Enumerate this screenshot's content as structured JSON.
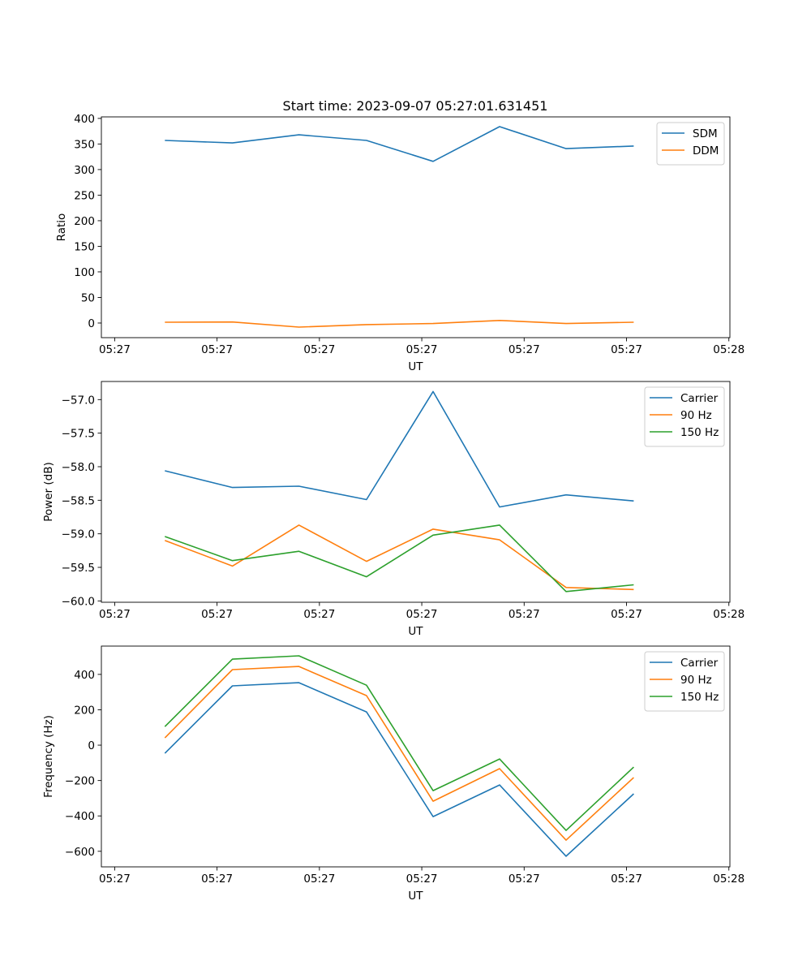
{
  "figure_title": "Start time: 2023-09-07 05:27:01.631451",
  "chart_data": [
    {
      "type": "line",
      "title": "Start time: 2023-09-07 05:27:01.631451",
      "xlabel": "UT",
      "ylabel": "Ratio",
      "x_units": "seconds after 05:27:00",
      "xlim": [
        -1.3,
        60.1
      ],
      "ylim": [
        -28.6,
        403
      ],
      "xticks": {
        "values": [
          0,
          10,
          20,
          30,
          40,
          50,
          60
        ],
        "labels": [
          "05:27",
          "05:27",
          "05:27",
          "05:27",
          "05:27",
          "05:27",
          "05:28"
        ]
      },
      "yticks": {
        "values": [
          0,
          50,
          100,
          150,
          200,
          250,
          300,
          350,
          400
        ],
        "labels": [
          "0",
          "50",
          "100",
          "150",
          "200",
          "250",
          "300",
          "350",
          "400"
        ]
      },
      "x": [
        4.9,
        11.5,
        18.0,
        24.6,
        31.1,
        37.6,
        44.1,
        50.7
      ],
      "legend_position": "top-right",
      "series": [
        {
          "name": "SDM",
          "color": "#1f77b4",
          "values": [
            357,
            352,
            368,
            357,
            316,
            384,
            341,
            346
          ]
        },
        {
          "name": "DDM",
          "color": "#ff7f0e",
          "values": [
            1.6,
            2,
            -8,
            -3,
            -1,
            5,
            -1,
            1.5
          ]
        }
      ]
    },
    {
      "type": "line",
      "title": "",
      "xlabel": "UT",
      "ylabel": "Power (dB)",
      "x_units": "seconds after 05:27:00",
      "xlim": [
        -1.3,
        60.1
      ],
      "ylim": [
        -60.02,
        -56.73
      ],
      "xticks": {
        "values": [
          0,
          10,
          20,
          30,
          40,
          50,
          60
        ],
        "labels": [
          "05:27",
          "05:27",
          "05:27",
          "05:27",
          "05:27",
          "05:27",
          "05:28"
        ]
      },
      "yticks": {
        "values": [
          -60,
          -59.5,
          -59,
          -58.5,
          -58,
          -57.5,
          -57
        ],
        "labels": [
          "−60.0",
          "−59.5",
          "−59.0",
          "−58.5",
          "−58.0",
          "−57.5",
          "−57.0"
        ]
      },
      "x": [
        4.9,
        11.5,
        18.0,
        24.6,
        31.1,
        37.6,
        44.1,
        50.7
      ],
      "legend_position": "top-right",
      "series": [
        {
          "name": "Carrier",
          "color": "#1f77b4",
          "values": [
            -58.06,
            -58.31,
            -58.29,
            -58.49,
            -56.88,
            -58.6,
            -58.42,
            -58.51
          ]
        },
        {
          "name": "90 Hz",
          "color": "#ff7f0e",
          "values": [
            -59.1,
            -59.48,
            -58.87,
            -59.41,
            -58.93,
            -59.09,
            -59.8,
            -59.83
          ]
        },
        {
          "name": "150 Hz",
          "color": "#2ca02c",
          "values": [
            -59.04,
            -59.4,
            -59.26,
            -59.64,
            -59.02,
            -58.87,
            -59.86,
            -59.76
          ]
        }
      ]
    },
    {
      "type": "line",
      "title": "",
      "xlabel": "UT",
      "ylabel": "Frequency (Hz)",
      "x_units": "seconds after 05:27:00",
      "xlim": [
        -1.3,
        60.1
      ],
      "ylim": [
        -688,
        560
      ],
      "xticks": {
        "values": [
          0,
          10,
          20,
          30,
          40,
          50,
          60
        ],
        "labels": [
          "05:27",
          "05:27",
          "05:27",
          "05:27",
          "05:27",
          "05:27",
          "05:28"
        ]
      },
      "yticks": {
        "values": [
          -600,
          -400,
          -200,
          0,
          200,
          400
        ],
        "labels": [
          "−600",
          "−400",
          "−200",
          "0",
          "200",
          "400"
        ]
      },
      "x": [
        4.9,
        11.5,
        18.0,
        24.6,
        31.1,
        37.6,
        44.1,
        50.7
      ],
      "legend_position": "top-right",
      "series": [
        {
          "name": "Carrier",
          "color": "#1f77b4",
          "values": [
            -46,
            335,
            353,
            188,
            -404,
            -225,
            -628,
            -275
          ]
        },
        {
          "name": "90 Hz",
          "color": "#ff7f0e",
          "values": [
            41,
            427,
            445,
            280,
            -317,
            -133,
            -537,
            -183
          ]
        },
        {
          "name": "150 Hz",
          "color": "#2ca02c",
          "values": [
            105,
            486,
            505,
            339,
            -257,
            -78,
            -482,
            -124
          ]
        }
      ]
    }
  ]
}
